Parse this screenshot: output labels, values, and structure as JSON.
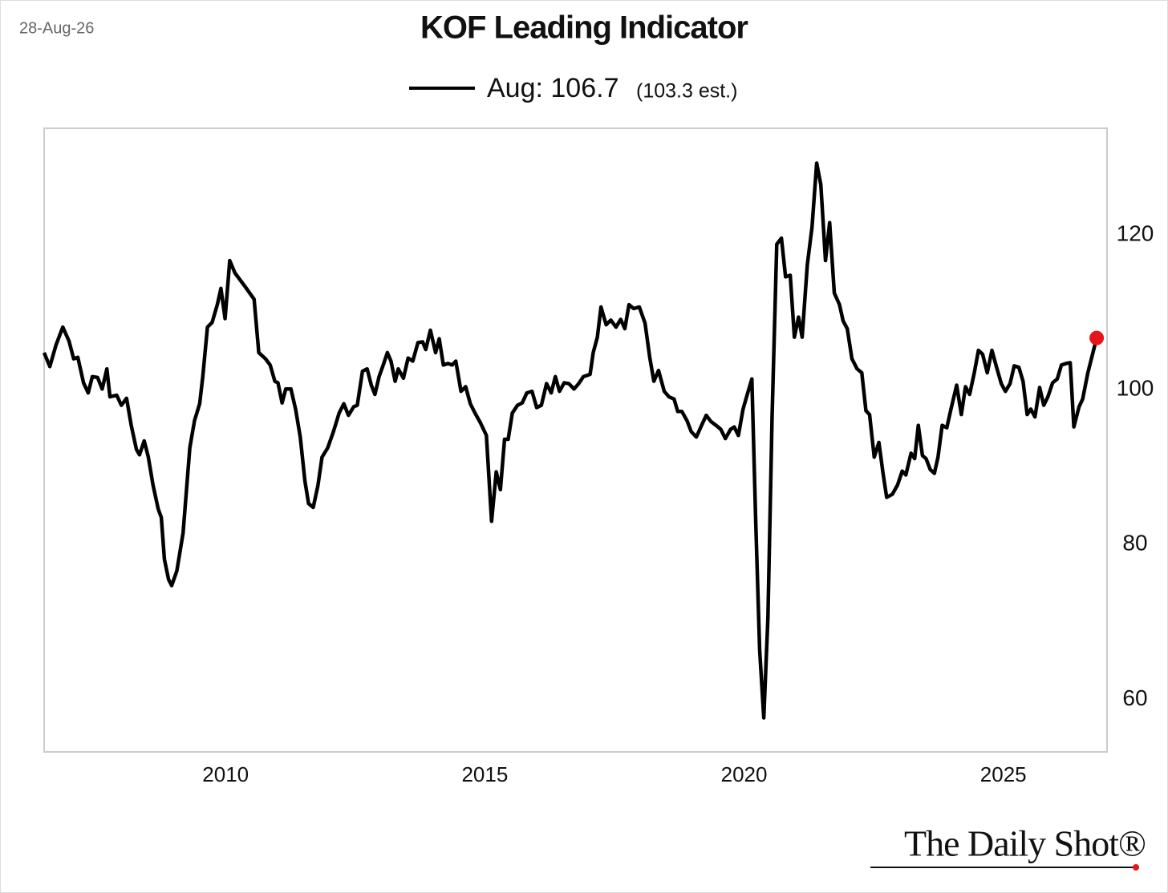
{
  "date": "28-Aug-26",
  "brand": "The Daily Shot®",
  "chart_data": {
    "type": "line",
    "title": "KOF Leading Indicator",
    "legend_note": "(103.3 est.)",
    "marker_color": "#e8141b",
    "xlim": [
      2006.5,
      2027.0
    ],
    "xticks": [
      2010,
      2015,
      2020,
      2025
    ],
    "ylim": [
      53.2,
      133.8
    ],
    "yticks": [
      60,
      80,
      100,
      120
    ],
    "grid": false,
    "x": [
      2006.5,
      2006.61,
      2006.73,
      2006.86,
      2006.98,
      2007.07,
      2007.15,
      2007.26,
      2007.35,
      2007.43,
      2007.53,
      2007.62,
      2007.71,
      2007.77,
      2007.9,
      2007.99,
      2008.09,
      2008.18,
      2008.28,
      2008.34,
      2008.43,
      2008.51,
      2008.6,
      2008.7,
      2008.76,
      2008.82,
      2008.9,
      2008.96,
      2009.06,
      2009.18,
      2009.31,
      2009.4,
      2009.5,
      2009.56,
      2009.65,
      2009.74,
      2009.84,
      2009.91,
      2009.99,
      2010.08,
      2010.18,
      2010.38,
      2010.55,
      2010.64,
      2010.77,
      2010.86,
      2010.95,
      2011.01,
      2011.09,
      2011.16,
      2011.26,
      2011.35,
      2011.44,
      2011.53,
      2011.6,
      2011.69,
      2011.78,
      2011.86,
      2011.97,
      2012.08,
      2012.19,
      2012.28,
      2012.37,
      2012.47,
      2012.54,
      2012.64,
      2012.73,
      2012.81,
      2012.88,
      2012.96,
      2013.04,
      2013.12,
      2013.19,
      2013.27,
      2013.33,
      2013.43,
      2013.52,
      2013.61,
      2013.71,
      2013.8,
      2013.86,
      2013.95,
      2014.05,
      2014.12,
      2014.2,
      2014.29,
      2014.37,
      2014.44,
      2014.54,
      2014.63,
      2014.72,
      2014.81,
      2014.91,
      2015.03,
      2015.13,
      2015.22,
      2015.3,
      2015.38,
      2015.45,
      2015.53,
      2015.63,
      2015.72,
      2015.81,
      2015.91,
      2016.0,
      2016.09,
      2016.19,
      2016.28,
      2016.36,
      2016.44,
      2016.53,
      2016.62,
      2016.72,
      2016.81,
      2016.9,
      2017.03,
      2017.09,
      2017.17,
      2017.24,
      2017.34,
      2017.43,
      2017.53,
      2017.62,
      2017.7,
      2017.78,
      2017.87,
      2017.98,
      2018.09,
      2018.18,
      2018.26,
      2018.35,
      2018.46,
      2018.55,
      2018.65,
      2018.72,
      2018.8,
      2018.9,
      2018.98,
      2019.08,
      2019.18,
      2019.27,
      2019.36,
      2019.46,
      2019.55,
      2019.64,
      2019.74,
      2019.81,
      2019.89,
      2019.98,
      2020.07,
      2020.15,
      2020.22,
      2020.3,
      2020.38,
      2020.46,
      2020.54,
      2020.63,
      2020.72,
      2020.8,
      2020.89,
      2020.97,
      2021.05,
      2021.12,
      2021.22,
      2021.31,
      2021.4,
      2021.48,
      2021.57,
      2021.65,
      2021.74,
      2021.84,
      2021.91,
      2021.99,
      2022.08,
      2022.18,
      2022.27,
      2022.35,
      2022.42,
      2022.51,
      2022.6,
      2022.68,
      2022.75,
      2022.86,
      2022.96,
      2023.05,
      2023.12,
      2023.22,
      2023.29,
      2023.36,
      2023.44,
      2023.51,
      2023.59,
      2023.67,
      2023.74,
      2023.82,
      2023.91,
      2023.99,
      2024.1,
      2024.19,
      2024.27,
      2024.35,
      2024.44,
      2024.52,
      2024.6,
      2024.69,
      2024.78,
      2024.87,
      2024.96,
      2025.04,
      2025.13,
      2025.21,
      2025.3,
      2025.38,
      2025.46,
      2025.53,
      2025.61,
      2025.7,
      2025.78,
      2025.86,
      2025.95,
      2026.04,
      2026.12,
      2026.21,
      2026.29,
      2026.36,
      2026.46,
      2026.53,
      2026.63,
      2026.8
    ],
    "series": [
      {
        "name": "Aug: 106.7",
        "color": "#000000",
        "values": [
          104.8,
          103.0,
          105.8,
          108.1,
          106.3,
          104.0,
          104.2,
          100.9,
          99.6,
          101.7,
          101.6,
          100.1,
          102.7,
          99.1,
          99.3,
          98.0,
          98.9,
          95.4,
          92.3,
          91.6,
          93.4,
          91.3,
          87.7,
          84.6,
          83.5,
          78.1,
          75.5,
          74.7,
          76.6,
          81.5,
          92.5,
          96.0,
          98.2,
          101.7,
          108.1,
          108.7,
          111.0,
          113.1,
          109.2,
          116.7,
          115.1,
          113.3,
          111.7,
          104.8,
          104.0,
          103.2,
          101.1,
          100.9,
          98.3,
          100.1,
          100.1,
          97.5,
          93.9,
          88.2,
          85.3,
          84.8,
          87.6,
          91.3,
          92.5,
          94.6,
          97.0,
          98.2,
          96.7,
          97.8,
          98.0,
          102.4,
          102.7,
          100.6,
          99.4,
          101.7,
          103.2,
          104.8,
          103.7,
          101.1,
          102.7,
          101.5,
          104.1,
          103.7,
          106.1,
          106.2,
          105.2,
          107.7,
          104.8,
          106.6,
          103.2,
          103.4,
          103.2,
          103.7,
          99.8,
          100.4,
          98.2,
          97.0,
          95.8,
          94.1,
          83.0,
          89.4,
          87.1,
          93.6,
          93.6,
          97.0,
          98.0,
          98.3,
          99.6,
          99.8,
          97.7,
          98.0,
          100.8,
          99.6,
          101.7,
          99.8,
          100.9,
          100.8,
          100.1,
          100.8,
          101.7,
          102.0,
          104.8,
          106.8,
          110.7,
          108.4,
          109.0,
          108.1,
          109.1,
          107.9,
          111.0,
          110.5,
          110.7,
          108.6,
          104.2,
          101.1,
          102.5,
          99.8,
          99.1,
          98.8,
          97.2,
          97.2,
          96.0,
          94.6,
          93.9,
          95.4,
          96.7,
          95.9,
          95.4,
          94.9,
          93.7,
          94.9,
          95.2,
          94.1,
          97.5,
          99.6,
          101.4,
          84.0,
          66.4,
          57.6,
          70.6,
          96.5,
          118.8,
          119.6,
          114.6,
          114.8,
          106.8,
          109.4,
          106.8,
          116.2,
          121.0,
          129.3,
          126.5,
          116.7,
          121.6,
          112.5,
          111.0,
          108.9,
          107.9,
          104.0,
          102.7,
          102.2,
          97.3,
          96.8,
          91.3,
          93.2,
          89.2,
          86.1,
          86.5,
          87.7,
          89.5,
          89.0,
          91.8,
          91.1,
          95.4,
          91.5,
          91.1,
          89.7,
          89.2,
          91.3,
          95.4,
          95.1,
          97.5,
          100.6,
          96.8,
          100.4,
          99.4,
          102.2,
          105.1,
          104.6,
          102.2,
          105.1,
          102.9,
          100.8,
          99.8,
          100.8,
          103.1,
          102.9,
          101.1,
          96.8,
          97.5,
          96.5,
          100.3,
          98.0,
          99.1,
          100.9,
          101.4,
          103.2,
          103.4,
          103.5,
          95.2,
          97.8,
          98.8,
          102.2,
          106.7
        ]
      }
    ]
  }
}
